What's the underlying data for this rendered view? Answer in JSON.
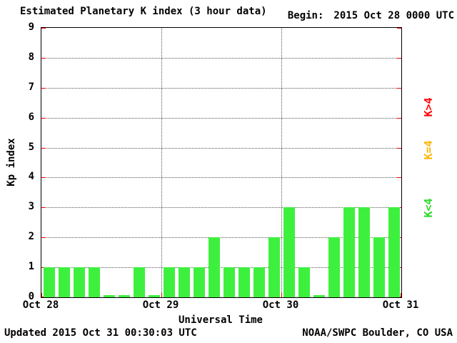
{
  "header": {
    "title": "Estimated Planetary K index (3 hour data)",
    "begin_label": "Begin:",
    "begin_value": "2015 Oct 28 0000 UTC"
  },
  "footer": {
    "updated": "Updated 2015 Oct 31 00:30:03 UTC",
    "source": "NOAA/SWPC Boulder, CO USA"
  },
  "chart_data": {
    "type": "bar",
    "title": "Estimated Planetary K index (3 hour data)",
    "xlabel": "Universal Time",
    "ylabel": "Kp index",
    "ylim": [
      0,
      9
    ],
    "yticks": [
      0,
      1,
      2,
      3,
      4,
      5,
      6,
      7,
      8,
      9
    ],
    "grid": "dotted horizontal lines at each Kp level, dotted vertical lines at day boundaries",
    "interval_hours": 3,
    "x_day_labels": [
      "Oct 28",
      "Oct 29",
      "Oct 30",
      "Oct 31"
    ],
    "values": [
      1,
      1,
      1,
      1,
      0,
      0,
      1,
      0,
      1,
      1,
      1,
      2,
      1,
      1,
      1,
      2,
      3,
      1,
      0,
      2,
      3,
      3,
      2,
      3
    ],
    "bar_color": "#3ef03e",
    "tick_color": "#ff0000",
    "legend": [
      {
        "label": "K>4",
        "color": "#ff0000"
      },
      {
        "label": "K=4",
        "color": "#ffb400"
      },
      {
        "label": "K<4",
        "color": "#2bd82b"
      }
    ]
  }
}
